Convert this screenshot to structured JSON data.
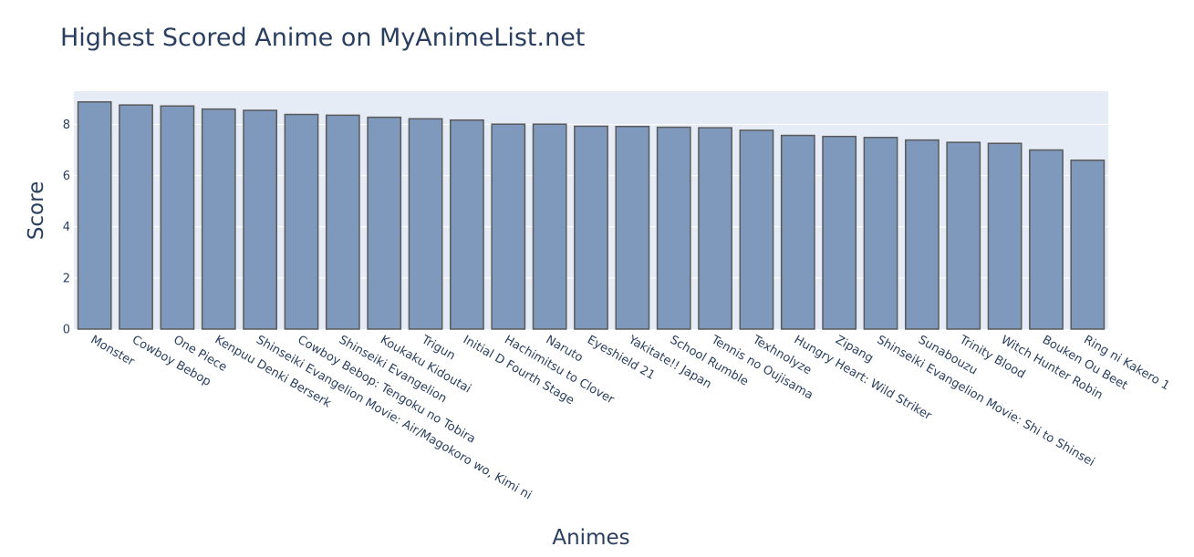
{
  "chart_data": {
    "type": "bar",
    "title": "Highest Scored Anime on MyAnimeList.net",
    "xlabel": "Animes",
    "ylabel": "Score",
    "ylim": [
      0,
      9.3
    ],
    "yticks": [
      0,
      2,
      4,
      6,
      8
    ],
    "grid": true,
    "plot_background": "#e5ecf6",
    "bar_color": "#7f99bc",
    "categories": [
      "Monster",
      "Cowboy Bebop",
      "One Piece",
      "Kenpuu Denki Berserk",
      "Shinseiki Evangelion Movie: Air/Magokoro wo, Kimi ni",
      "Cowboy Bebop: Tengoku no Tobira",
      "Shinseiki Evangelion",
      "Koukaku Kidoutai",
      "Trigun",
      "Initial D Fourth Stage",
      "Hachimitsu to Clover",
      "Naruto",
      "Eyeshield 21",
      "Yakitate!! Japan",
      "School Rumble",
      "Tennis no Oujisama",
      "Texhnolyze",
      "Hungry Heart: Wild Striker",
      "Zipang",
      "Shinseiki Evangelion Movie: Shi to Shinsei",
      "Sunabouzu",
      "Trinity Blood",
      "Witch Hunter Robin",
      "Bouken Ou Beet",
      "Ring ni Kakero 1"
    ],
    "values": [
      8.88,
      8.76,
      8.72,
      8.6,
      8.55,
      8.39,
      8.36,
      8.28,
      8.22,
      8.17,
      8.01,
      8.01,
      7.93,
      7.92,
      7.89,
      7.87,
      7.77,
      7.57,
      7.53,
      7.49,
      7.39,
      7.3,
      7.26,
      7.0,
      6.6
    ]
  }
}
